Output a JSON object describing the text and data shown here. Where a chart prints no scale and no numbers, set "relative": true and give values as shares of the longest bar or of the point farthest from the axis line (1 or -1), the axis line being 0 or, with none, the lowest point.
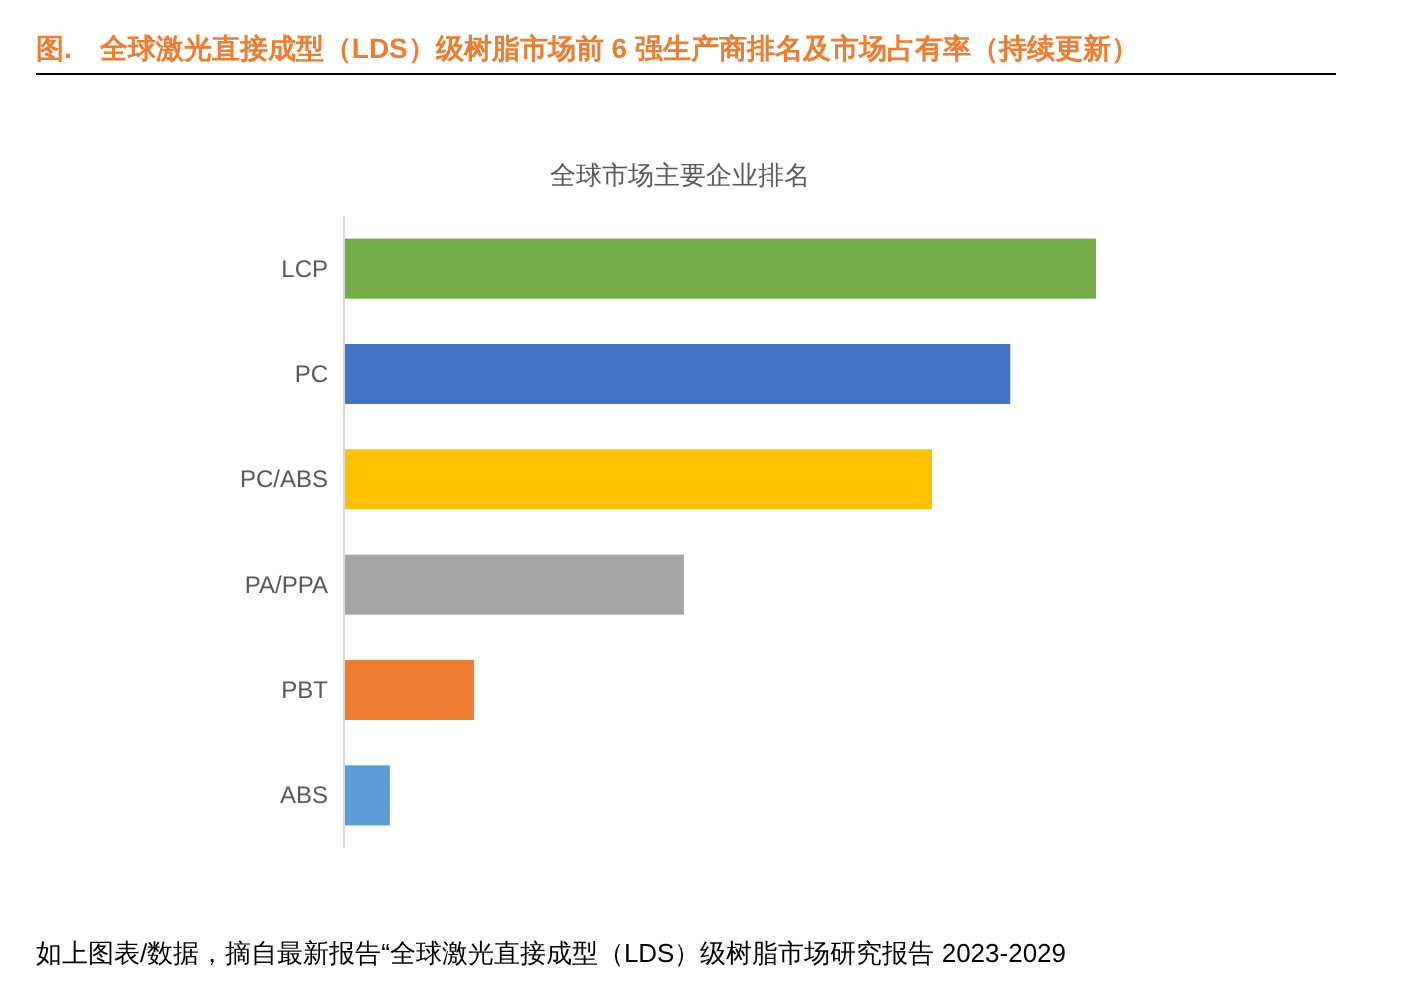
{
  "chart_data": {
    "type": "bar",
    "orientation": "horizontal",
    "relative": true,
    "title": "图.　全球激光直接成型（LDS）级树脂市场前 6 强生产商排名及市场占有率（持续更新）",
    "subtitle": "全球市场主要企业排名",
    "categories": [
      "LCP",
      "PC",
      "PC/ABS",
      "PA/PPA",
      "PBT",
      "ABS"
    ],
    "values": [
      1,
      0.886,
      0.782,
      0.452,
      0.173,
      0.061
    ],
    "colors": [
      "#70ad47",
      "#4472c4",
      "#ffc000",
      "#a5a5a5",
      "#ed7d31",
      "#5b9bd5"
    ],
    "annotations": [
      "如上图表/数据，摘自最新报告“全球激光直接成型（LDS）级树脂市场研究报告 2023-2029"
    ]
  }
}
